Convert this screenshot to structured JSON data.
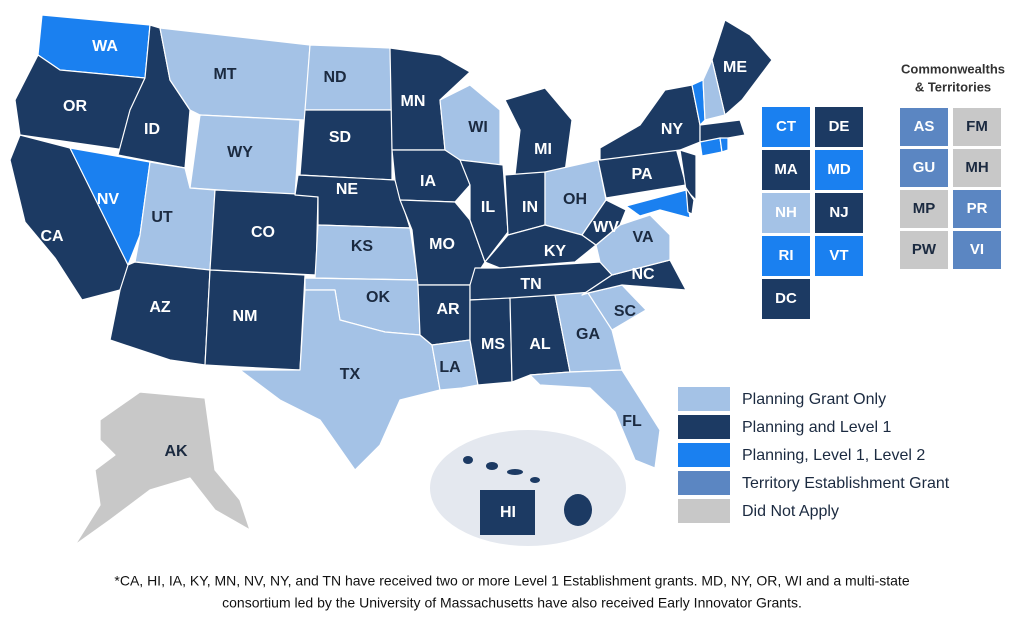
{
  "states": [
    {
      "label": "WA",
      "color": "#1a80f0"
    },
    {
      "label": "OR",
      "color": "#1c3a63"
    },
    {
      "label": "CA",
      "color": "#1c3a63"
    },
    {
      "label": "NV",
      "color": "#1a80f0"
    },
    {
      "label": "ID",
      "color": "#1c3a63"
    },
    {
      "label": "MT",
      "color": "#a4c2e6"
    },
    {
      "label": "WY",
      "color": "#a4c2e6"
    },
    {
      "label": "UT",
      "color": "#a4c2e6"
    },
    {
      "label": "AZ",
      "color": "#1c3a63"
    },
    {
      "label": "CO",
      "color": "#1c3a63"
    },
    {
      "label": "NM",
      "color": "#1c3a63"
    },
    {
      "label": "ND",
      "color": "#a4c2e6"
    },
    {
      "label": "SD",
      "color": "#1c3a63"
    },
    {
      "label": "NE",
      "color": "#1c3a63"
    },
    {
      "label": "KS",
      "color": "#a4c2e6"
    },
    {
      "label": "OK",
      "color": "#a4c2e6"
    },
    {
      "label": "TX",
      "color": "#a4c2e6"
    },
    {
      "label": "MN",
      "color": "#1c3a63"
    },
    {
      "label": "IA",
      "color": "#1c3a63"
    },
    {
      "label": "MO",
      "color": "#1c3a63"
    },
    {
      "label": "AR",
      "color": "#1c3a63"
    },
    {
      "label": "LA",
      "color": "#a4c2e6"
    },
    {
      "label": "WI",
      "color": "#a4c2e6"
    },
    {
      "label": "IL",
      "color": "#1c3a63"
    },
    {
      "label": "MI",
      "color": "#1c3a63"
    },
    {
      "label": "IN",
      "color": "#1c3a63"
    },
    {
      "label": "OH",
      "color": "#a4c2e6"
    },
    {
      "label": "KY",
      "color": "#1c3a63"
    },
    {
      "label": "TN",
      "color": "#1c3a63"
    },
    {
      "label": "MS",
      "color": "#1c3a63"
    },
    {
      "label": "AL",
      "color": "#1c3a63"
    },
    {
      "label": "GA",
      "color": "#a4c2e6"
    },
    {
      "label": "FL",
      "color": "#a4c2e6"
    },
    {
      "label": "SC",
      "color": "#a4c2e6"
    },
    {
      "label": "NC",
      "color": "#1c3a63"
    },
    {
      "label": "VA",
      "color": "#a4c2e6"
    },
    {
      "label": "WV",
      "color": "#1c3a63"
    },
    {
      "label": "PA",
      "color": "#1c3a63"
    },
    {
      "label": "NY",
      "color": "#1c3a63"
    },
    {
      "label": "ME",
      "color": "#1c3a63"
    },
    {
      "label": "AK",
      "color": "#c8c8c8"
    },
    {
      "label": "HI",
      "color": "#1c3a63"
    }
  ],
  "small_states": [
    {
      "label": "CT",
      "color": "#1a80f0"
    },
    {
      "label": "DE",
      "color": "#1c3a63"
    },
    {
      "label": "MA",
      "color": "#1c3a63"
    },
    {
      "label": "MD",
      "color": "#1a80f0"
    },
    {
      "label": "NH",
      "color": "#a4c2e6"
    },
    {
      "label": "NJ",
      "color": "#1c3a63"
    },
    {
      "label": "RI",
      "color": "#1a80f0"
    },
    {
      "label": "VT",
      "color": "#1a80f0"
    },
    {
      "label": "DC",
      "color": "#1c3a63"
    }
  ],
  "territories": {
    "title_lines": [
      "Commonwealths",
      "& Territories"
    ],
    "items": [
      {
        "label": "AS",
        "color": "#5b86c2"
      },
      {
        "label": "FM",
        "color": "#c8c8c8"
      },
      {
        "label": "GU",
        "color": "#5b86c2"
      },
      {
        "label": "MH",
        "color": "#c8c8c8"
      },
      {
        "label": "MP",
        "color": "#c8c8c8"
      },
      {
        "label": "PR",
        "color": "#5b86c2"
      },
      {
        "label": "PW",
        "color": "#c8c8c8"
      },
      {
        "label": "VI",
        "color": "#5b86c2"
      }
    ]
  },
  "legend": [
    {
      "label": "Planning Grant Only",
      "color": "#a4c2e6"
    },
    {
      "label": "Planning and Level 1",
      "color": "#1c3a63"
    },
    {
      "label": "Planning, Level 1, Level 2",
      "color": "#1a80f0"
    },
    {
      "label": "Territory Establishment Grant",
      "color": "#5b86c2"
    },
    {
      "label": "Did Not Apply",
      "color": "#c8c8c8"
    }
  ],
  "footnote_lines": [
    "*CA, HI, IA, KY, MN, NV, NY, and TN have received two or more Level 1 Establishment grants. MD, NY, OR, WI and a multi-state",
    "consortium led by the University of Massachusetts have also received Early Innovator Grants."
  ]
}
